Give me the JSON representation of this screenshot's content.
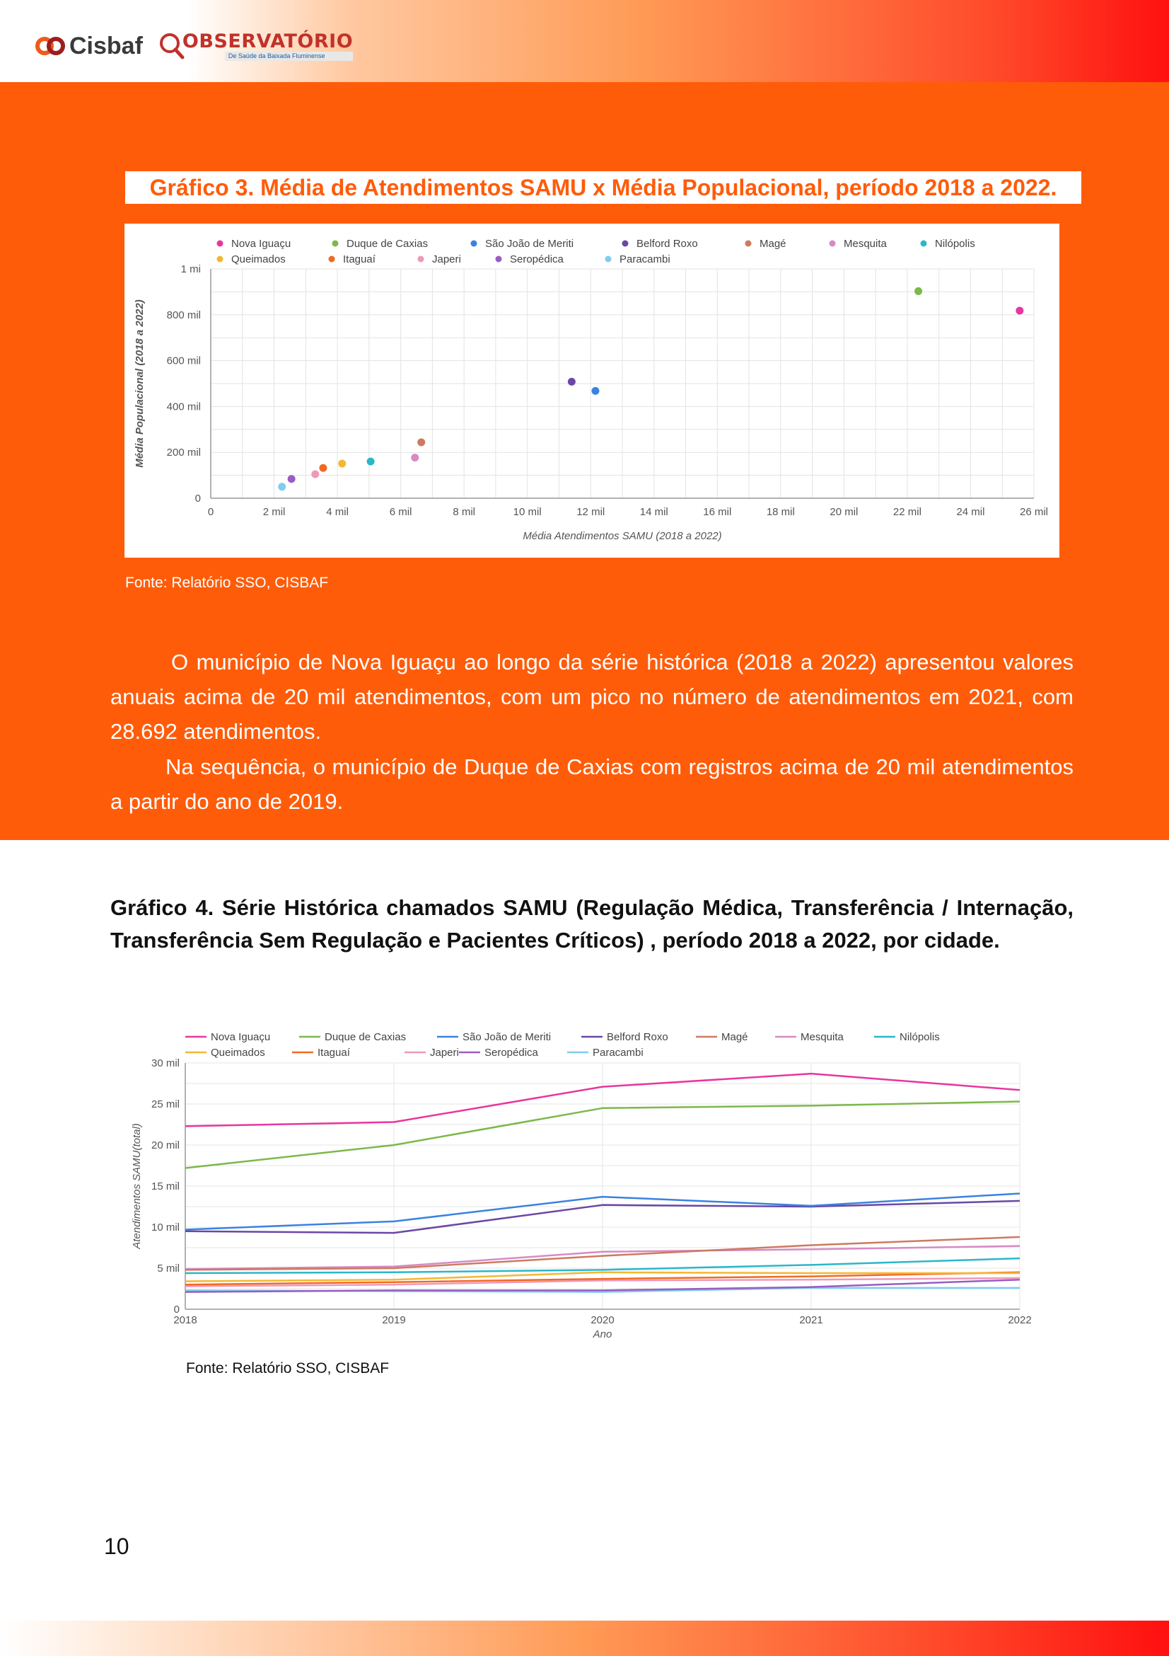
{
  "header": {
    "cisbaf_logo_text": "Cisbaf",
    "observatorio_title": "OBSERVATÓRIO",
    "observatorio_subtitle": "De Saúde da Baixada Fluminense"
  },
  "chart3": {
    "title_text": "Gráfico 3. Média de Atendimentos SAMU x Média Populacional, período 2018 a 2022.",
    "source": "Fonte: Relatório SSO, CISBAF"
  },
  "paragraphs": {
    "p1": "O município de Nova Iguaçu ao longo da série histórica (2018 a 2022) apresentou valores anuais acima de 20 mil atendimentos, com um pico no número de atendimentos em 2021, com 28.692 atendimentos.",
    "p2": "Na sequência, o município de Duque de Caxias com registros acima de 20 mil atendimentos a partir do ano de 2019."
  },
  "chart4": {
    "title_text": "Gráfico 4. Série Histórica chamados SAMU (Regulação Médica, Transferência / Internação, Transferência Sem Regulação e Pacientes Críticos) , período 2018 a 2022, por cidade.",
    "source": "Fonte: Relatório SSO, CISBAF"
  },
  "page_number": "10",
  "colors": {
    "orange": "#ff5c0a",
    "Nova Iguaçu": "#e8369f",
    "Duque de Caxias": "#7cb84a",
    "São João de Meriti": "#3a82e0",
    "Belford Roxo": "#6a47a6",
    "Magé": "#cd7a62",
    "Mesquita": "#d78ac3",
    "Nilópolis": "#2bb7c9",
    "Queimados": "#f5b731",
    "Itaguaí": "#f06a22",
    "Japeri": "#ef98b8",
    "Seropédica": "#9a5cc2",
    "Paracambi": "#7fcdf0"
  },
  "chart_data": [
    {
      "type": "scatter",
      "title": "",
      "xlabel": "Média Atendimentos SAMU (2018 a 2022)",
      "ylabel": "Média Populacional (2018 a 2022)",
      "xlim": [
        0,
        26000
      ],
      "ylim": [
        0,
        1000000
      ],
      "xticks": [
        0,
        2000,
        4000,
        6000,
        8000,
        10000,
        12000,
        14000,
        16000,
        18000,
        20000,
        22000,
        24000,
        26000
      ],
      "xtick_labels": [
        "0",
        "2 mil",
        "4 mil",
        "6 mil",
        "8 mil",
        "10 mil",
        "12 mil",
        "14 mil",
        "16 mil",
        "18 mil",
        "20 mil",
        "22 mil",
        "24 mil",
        "26 mil"
      ],
      "yticks": [
        0,
        200000,
        400000,
        600000,
        800000,
        1000000
      ],
      "ytick_labels": [
        "0",
        "200 mil",
        "400 mil",
        "600 mil",
        "800 mil",
        "1 mi"
      ],
      "grid": true,
      "legend_position": "top",
      "series": [
        {
          "name": "Nova Iguaçu",
          "x": 25550,
          "y": 818000
        },
        {
          "name": "Duque de Caxias",
          "x": 22350,
          "y": 903000
        },
        {
          "name": "São João de Meriti",
          "x": 12150,
          "y": 468000
        },
        {
          "name": "Belford Roxo",
          "x": 11400,
          "y": 508000
        },
        {
          "name": "Magé",
          "x": 6650,
          "y": 244000
        },
        {
          "name": "Mesquita",
          "x": 6450,
          "y": 177000
        },
        {
          "name": "Nilópolis",
          "x": 5050,
          "y": 160000
        },
        {
          "name": "Queimados",
          "x": 4150,
          "y": 151000
        },
        {
          "name": "Itaguaí",
          "x": 3550,
          "y": 132000
        },
        {
          "name": "Japeri",
          "x": 3300,
          "y": 105000
        },
        {
          "name": "Seropédica",
          "x": 2550,
          "y": 84000
        },
        {
          "name": "Paracambi",
          "x": 2250,
          "y": 50000
        }
      ]
    },
    {
      "type": "line",
      "title": "",
      "xlabel": "Ano",
      "ylabel": "Atendimentos SAMU(total)",
      "categories": [
        "2018",
        "2019",
        "2020",
        "2021",
        "2022"
      ],
      "ylim": [
        0,
        30000
      ],
      "yticks": [
        0,
        5000,
        10000,
        15000,
        20000,
        25000,
        30000
      ],
      "ytick_labels": [
        "0",
        "5 mil",
        "10 mil",
        "15 mil",
        "20 mil",
        "25 mil",
        "30 mil"
      ],
      "grid": true,
      "legend_position": "top",
      "series": [
        {
          "name": "Nova Iguaçu",
          "values": [
            22300,
            22800,
            27100,
            28692,
            26700
          ]
        },
        {
          "name": "Duque de Caxias",
          "values": [
            17200,
            20000,
            24500,
            24800,
            25300
          ]
        },
        {
          "name": "São João de Meriti",
          "values": [
            9700,
            10700,
            13700,
            12600,
            14100
          ]
        },
        {
          "name": "Belford Roxo",
          "values": [
            9500,
            9300,
            12700,
            12500,
            13200
          ]
        },
        {
          "name": "Magé",
          "values": [
            4800,
            5000,
            6500,
            7800,
            8800
          ]
        },
        {
          "name": "Mesquita",
          "values": [
            4900,
            5200,
            7000,
            7300,
            7700
          ]
        },
        {
          "name": "Nilópolis",
          "values": [
            4400,
            4500,
            4800,
            5400,
            6200
          ]
        },
        {
          "name": "Queimados",
          "values": [
            3400,
            3600,
            4500,
            4400,
            4400
          ]
        },
        {
          "name": "Itaguaí",
          "values": [
            3000,
            3300,
            3700,
            4000,
            4500
          ]
        },
        {
          "name": "Japeri",
          "values": [
            2800,
            3000,
            3500,
            3600,
            3800
          ]
        },
        {
          "name": "Seropédica",
          "values": [
            2100,
            2300,
            2300,
            2700,
            3600
          ]
        },
        {
          "name": "Paracambi",
          "values": [
            2300,
            2200,
            2100,
            2600,
            2600
          ]
        }
      ]
    }
  ]
}
